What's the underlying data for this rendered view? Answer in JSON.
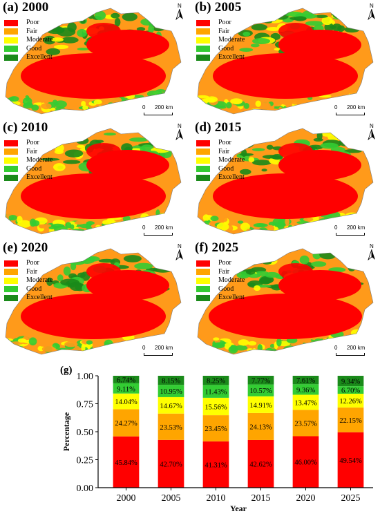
{
  "legend_categories": [
    {
      "label": "Poor",
      "color": "#ff0000"
    },
    {
      "label": "Fair",
      "color": "#ffa500"
    },
    {
      "label": "Moderate",
      "color": "#ffff00"
    },
    {
      "label": "Good",
      "color": "#33cc33"
    },
    {
      "label": "Excellent",
      "color": "#1a8a1a"
    }
  ],
  "map_panels": [
    {
      "title": "(a) 2000",
      "north": "N",
      "scale_zero": "0",
      "scale_dist": "200 km"
    },
    {
      "title": "(b) 2005",
      "north": "N",
      "scale_zero": "0",
      "scale_dist": "200 km"
    },
    {
      "title": "(c) 2010",
      "north": "N",
      "scale_zero": "0",
      "scale_dist": "200 km"
    },
    {
      "title": "(d) 2015",
      "north": "N",
      "scale_zero": "0",
      "scale_dist": "200 km"
    },
    {
      "title": "(e) 2020",
      "north": "N",
      "scale_zero": "0",
      "scale_dist": "200 km"
    },
    {
      "title": "(f) 2025",
      "north": "N",
      "scale_zero": "0",
      "scale_dist": "200 km"
    }
  ],
  "chart_data": {
    "type": "bar",
    "panel_label": "(g)",
    "stacked": true,
    "categories": [
      "2000",
      "2005",
      "2010",
      "2015",
      "2020",
      "2025"
    ],
    "xlabel": "Year",
    "ylabel": "Percentage",
    "ylim": [
      0,
      1
    ],
    "yticks": [
      "0.00",
      "0.25",
      "0.50",
      "0.75",
      "1.00"
    ],
    "grid": false,
    "series": [
      {
        "name": "Poor",
        "color": "#ff0000",
        "values": [
          0.4584,
          0.427,
          0.4131,
          0.4262,
          0.46,
          0.4954
        ],
        "labels": [
          "45.84%",
          "42.70%",
          "41.31%",
          "42.62%",
          "46.00%",
          "49.54%"
        ]
      },
      {
        "name": "Fair",
        "color": "#ffa500",
        "values": [
          0.2427,
          0.2353,
          0.2345,
          0.2413,
          0.2357,
          0.2215
        ],
        "labels": [
          "24.27%",
          "23.53%",
          "23.45%",
          "24.13%",
          "23.57%",
          "22.15%"
        ]
      },
      {
        "name": "Moderate",
        "color": "#ffff00",
        "values": [
          0.1404,
          0.1467,
          0.1556,
          0.1491,
          0.1347,
          0.1226
        ],
        "labels": [
          "14.04%",
          "14.67%",
          "15.56%",
          "14.91%",
          "13.47%",
          "12.26%"
        ]
      },
      {
        "name": "Good",
        "color": "#33cc33",
        "values": [
          0.0911,
          0.1095,
          0.1143,
          0.1057,
          0.0936,
          0.067
        ],
        "labels": [
          "9.11%",
          "10.95%",
          "11.43%",
          "10.57%",
          "9.36%",
          "6.70%"
        ]
      },
      {
        "name": "Excellent",
        "color": "#1a8a1a",
        "values": [
          0.0674,
          0.0815,
          0.0825,
          0.0777,
          0.0761,
          0.0934
        ],
        "labels": [
          "6.74%",
          "8.15%",
          "8.25%",
          "7.77%",
          "7.61%",
          "9.34%"
        ]
      }
    ]
  }
}
